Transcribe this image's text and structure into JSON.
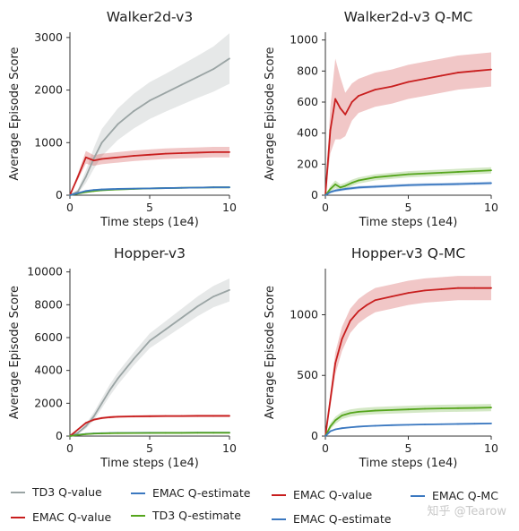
{
  "colors": {
    "td3_q_value": "#9aa4a4",
    "emac_q_value": "#c81e1e",
    "td3_q_estimate": "#55a51c",
    "emac_q_estimate": "#3b78c0",
    "emac_q_mc": "#3b78c0"
  },
  "legend": [
    {
      "key": "td3_q_value",
      "label": "TD3 Q-value"
    },
    {
      "key": "emac_q_value",
      "label": "EMAC Q-value"
    },
    {
      "key": "emac_q_estimate",
      "label": "EMAC Q-estimate"
    },
    {
      "key": "td3_q_estimate",
      "label": "TD3 Q-estimate"
    },
    {
      "key": "emac_q_value",
      "label": "EMAC Q-value"
    },
    {
      "key": "emac_q_estimate",
      "label": "EMAC Q-estimate"
    },
    {
      "key": "emac_q_mc",
      "label": "EMAC Q-MC"
    }
  ],
  "watermark": "知乎 @Tearow",
  "chart_data": [
    {
      "type": "line",
      "title": "Walker2d-v3",
      "xlabel": "Time steps (1e4)",
      "ylabel": "Average Episode Score",
      "xlim": [
        0,
        10
      ],
      "ylim": [
        0,
        3100
      ],
      "xticks": [
        0,
        5,
        10
      ],
      "yticks": [
        0,
        1000,
        2000,
        3000
      ],
      "x": [
        0,
        0.5,
        1,
        1.5,
        2,
        3,
        4,
        5,
        6,
        7,
        8,
        9,
        10
      ],
      "series": [
        {
          "key": "td3_q_value",
          "values": [
            0,
            70,
            350,
            700,
            1000,
            1350,
            1600,
            1800,
            1950,
            2100,
            2250,
            2400,
            2600
          ],
          "band": [
            0,
            40,
            120,
            200,
            260,
            300,
            330,
            350,
            360,
            380,
            400,
            430,
            480
          ]
        },
        {
          "key": "emac_q_value",
          "values": [
            0,
            350,
            720,
            660,
            690,
            720,
            750,
            770,
            790,
            800,
            810,
            820,
            820
          ],
          "band": [
            0,
            60,
            120,
            100,
            100,
            100,
            100,
            100,
            100,
            100,
            100,
            100,
            100
          ]
        },
        {
          "key": "td3_q_estimate",
          "values": [
            0,
            30,
            60,
            80,
            95,
            110,
            120,
            130,
            135,
            140,
            145,
            150,
            150
          ],
          "band": [
            0,
            10,
            15,
            15,
            15,
            15,
            15,
            15,
            15,
            15,
            15,
            15,
            15
          ]
        },
        {
          "key": "emac_q_estimate",
          "values": [
            0,
            40,
            80,
            100,
            110,
            120,
            125,
            130,
            135,
            140,
            145,
            150,
            150
          ],
          "band": [
            0,
            10,
            15,
            15,
            15,
            15,
            15,
            15,
            15,
            15,
            15,
            15,
            15
          ]
        }
      ]
    },
    {
      "type": "line",
      "title": "Walker2d-v3 Q-MC",
      "xlabel": "Time steps (1e4)",
      "ylabel": "Average Episode Score",
      "xlim": [
        0,
        10
      ],
      "ylim": [
        0,
        1050
      ],
      "xticks": [
        0,
        5,
        10
      ],
      "yticks": [
        0,
        200,
        400,
        600,
        800,
        1000
      ],
      "x": [
        0,
        0.3,
        0.6,
        0.9,
        1.2,
        1.6,
        2,
        3,
        4,
        5,
        6,
        7,
        8,
        9,
        10
      ],
      "series": [
        {
          "key": "emac_q_value",
          "values": [
            0,
            420,
            620,
            560,
            520,
            600,
            640,
            680,
            700,
            730,
            750,
            770,
            790,
            800,
            810
          ],
          "band": [
            0,
            150,
            260,
            200,
            140,
            120,
            110,
            110,
            110,
            110,
            110,
            110,
            110,
            110,
            110
          ]
        },
        {
          "key": "td3_q_estimate",
          "values": [
            0,
            40,
            70,
            50,
            60,
            80,
            95,
            115,
            125,
            135,
            140,
            145,
            150,
            155,
            160
          ],
          "band": [
            0,
            20,
            25,
            20,
            20,
            20,
            20,
            20,
            20,
            20,
            20,
            20,
            20,
            20,
            20
          ]
        },
        {
          "key": "emac_q_mc",
          "values": [
            0,
            20,
            30,
            35,
            40,
            45,
            50,
            55,
            60,
            65,
            68,
            70,
            72,
            75,
            78
          ],
          "band": [
            0,
            8,
            10,
            10,
            10,
            10,
            10,
            10,
            10,
            10,
            10,
            10,
            10,
            10,
            10
          ]
        }
      ]
    },
    {
      "type": "line",
      "title": "Hopper-v3",
      "xlabel": "Time steps (1e4)",
      "ylabel": "Average Episode Score",
      "xlim": [
        0,
        10
      ],
      "ylim": [
        0,
        10200
      ],
      "xticks": [
        0,
        5,
        10
      ],
      "yticks": [
        0,
        2000,
        4000,
        6000,
        8000,
        10000
      ],
      "x": [
        0,
        0.5,
        1,
        1.5,
        2,
        2.5,
        3,
        4,
        5,
        6,
        7,
        8,
        9,
        10
      ],
      "series": [
        {
          "key": "td3_q_value",
          "values": [
            0,
            200,
            600,
            1200,
            2000,
            2800,
            3500,
            4700,
            5800,
            6500,
            7200,
            7900,
            8500,
            8900
          ],
          "band": [
            0,
            80,
            150,
            250,
            300,
            350,
            380,
            400,
            450,
            500,
            550,
            600,
            650,
            700
          ]
        },
        {
          "key": "emac_q_value",
          "values": [
            0,
            400,
            800,
            1000,
            1100,
            1150,
            1180,
            1200,
            1210,
            1220,
            1220,
            1230,
            1230,
            1230
          ],
          "band": [
            0,
            60,
            70,
            70,
            70,
            70,
            70,
            70,
            70,
            70,
            70,
            70,
            70,
            70
          ]
        },
        {
          "key": "emac_q_estimate",
          "values": [
            0,
            80,
            130,
            160,
            175,
            185,
            190,
            195,
            200,
            205,
            205,
            210,
            210,
            210
          ],
          "band": [
            0,
            15,
            15,
            15,
            15,
            15,
            15,
            15,
            15,
            15,
            15,
            15,
            15,
            15
          ]
        },
        {
          "key": "td3_q_estimate",
          "values": [
            0,
            70,
            120,
            150,
            165,
            175,
            180,
            185,
            190,
            195,
            195,
            200,
            200,
            200
          ],
          "band": [
            0,
            15,
            15,
            15,
            15,
            15,
            15,
            15,
            15,
            15,
            15,
            15,
            15,
            15
          ]
        }
      ]
    },
    {
      "type": "line",
      "title": "Hopper-v3 Q-MC",
      "xlabel": "Time steps (1e4)",
      "ylabel": "Average Episode Score",
      "xlim": [
        0,
        10
      ],
      "ylim": [
        0,
        1380
      ],
      "xticks": [
        0,
        5,
        10
      ],
      "yticks": [
        0,
        500,
        1000
      ],
      "x": [
        0,
        0.3,
        0.6,
        1,
        1.5,
        2,
        2.5,
        3,
        4,
        5,
        6,
        7,
        8,
        9,
        10
      ],
      "series": [
        {
          "key": "emac_q_value",
          "values": [
            0,
            300,
            600,
            800,
            950,
            1030,
            1080,
            1120,
            1150,
            1180,
            1200,
            1210,
            1220,
            1220,
            1220
          ],
          "band": [
            0,
            60,
            90,
            100,
            100,
            100,
            100,
            100,
            100,
            100,
            100,
            100,
            100,
            100,
            100
          ]
        },
        {
          "key": "td3_q_estimate",
          "values": [
            0,
            80,
            130,
            170,
            190,
            200,
            205,
            210,
            215,
            220,
            225,
            228,
            230,
            232,
            235
          ],
          "band": [
            0,
            25,
            30,
            30,
            30,
            30,
            30,
            30,
            30,
            30,
            30,
            30,
            30,
            30,
            30
          ]
        },
        {
          "key": "emac_q_mc",
          "values": [
            0,
            40,
            55,
            65,
            72,
            78,
            82,
            85,
            90,
            93,
            96,
            98,
            100,
            102,
            104
          ],
          "band": [
            0,
            6,
            6,
            6,
            6,
            6,
            6,
            6,
            6,
            6,
            6,
            6,
            6,
            6,
            6
          ]
        }
      ]
    }
  ]
}
